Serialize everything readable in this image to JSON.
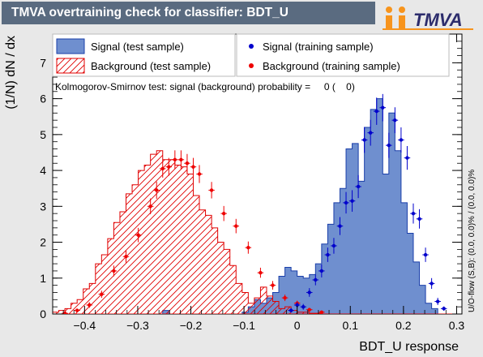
{
  "title": "TMVA overtraining check for classifier: BDT_U",
  "logo_text": "TMVA",
  "colors": {
    "signal_fill": "#6f8fcf",
    "signal_line": "#1a3faa",
    "background_line": "#e00000",
    "signal_point": "#0000cc",
    "background_point": "#ee0000",
    "title_bar": "#5a6b80",
    "logo_orange": "#f7941d"
  },
  "legend": {
    "signal_test": "Signal (test sample)",
    "background_test": "Background (test sample)",
    "signal_train": "Signal (training sample)",
    "background_train": "Background (training sample)"
  },
  "ks_text": "Kolmogorov-Smirnov test: signal (background) probability =     0 (    0)",
  "side_text": "U/O-flow (S,B): (0.0, 0.0)% / (0.0, 0.0)%",
  "chart_data": {
    "type": "histogram",
    "xlabel": "BDT_U response",
    "ylabel": "(1/N) dN / dx",
    "xlim": [
      -0.46,
      0.31
    ],
    "ylim": [
      0,
      7.8
    ],
    "x_ticks": [
      -0.4,
      -0.3,
      -0.2,
      -0.1,
      0,
      0.1,
      0.2,
      0.3
    ],
    "x_tick_labels": [
      "−0.4",
      "−0.3",
      "−0.2",
      "−0.1",
      "0",
      "0.1",
      "0.2",
      "0.3"
    ],
    "y_ticks": [
      0,
      1,
      2,
      3,
      4,
      5,
      6,
      7
    ],
    "bin_edges": [
      -0.46,
      -0.4485,
      -0.437,
      -0.4255,
      -0.414,
      -0.4025,
      -0.391,
      -0.3795,
      -0.368,
      -0.3565,
      -0.345,
      -0.3335,
      -0.322,
      -0.3105,
      -0.299,
      -0.2875,
      -0.276,
      -0.2645,
      -0.253,
      -0.2415,
      -0.23,
      -0.2185,
      -0.207,
      -0.1955,
      -0.184,
      -0.1725,
      -0.161,
      -0.1495,
      -0.138,
      -0.1265,
      -0.115,
      -0.1035,
      -0.092,
      -0.0805,
      -0.069,
      -0.0575,
      -0.046,
      -0.0345,
      -0.023,
      -0.0115,
      0.0,
      0.0115,
      0.023,
      0.0345,
      0.046,
      0.0575,
      0.069,
      0.0805,
      0.092,
      0.1035,
      0.115,
      0.1265,
      0.138,
      0.1495,
      0.161,
      0.1725,
      0.184,
      0.1955,
      0.207,
      0.2185,
      0.23,
      0.2415,
      0.253,
      0.2645,
      0.276,
      0.2875,
      0.299,
      0.31
    ],
    "series": [
      {
        "name": "Signal (test sample)",
        "style": "filled",
        "values": [
          0,
          0,
          0,
          0,
          0,
          0,
          0,
          0,
          0,
          0,
          0,
          0,
          0,
          0,
          0,
          0,
          0,
          0,
          0.1,
          0,
          0,
          0,
          0,
          0,
          0,
          0,
          0,
          0,
          0,
          0,
          0,
          0.05,
          0.2,
          0.4,
          0.3,
          0.45,
          0.6,
          1.05,
          1.3,
          1.2,
          1.05,
          1.0,
          1.1,
          1.4,
          1.95,
          2.5,
          3.1,
          3.5,
          4.6,
          4.75,
          3.7,
          5.2,
          5.7,
          6.0,
          3.9,
          5.6,
          4.55,
          3.1,
          2.25,
          1.45,
          0.8,
          0.3,
          0.15,
          0.0,
          0.0,
          0.0,
          0.0
        ]
      },
      {
        "name": "Background (test sample)",
        "style": "hatched",
        "values": [
          0.05,
          0.1,
          0.15,
          0.3,
          0.4,
          0.7,
          0.85,
          1.4,
          1.65,
          2.1,
          2.55,
          2.85,
          3.35,
          3.6,
          4.0,
          4.15,
          4.45,
          4.55,
          4.3,
          4.3,
          4.15,
          4.1,
          3.9,
          3.3,
          2.9,
          2.75,
          2.4,
          2.0,
          1.8,
          1.35,
          0.85,
          0.6,
          0.3,
          0.45,
          0.75,
          0.5,
          0.35,
          0.15,
          0.2,
          0.1,
          0.05,
          0.05,
          0.02,
          0.02,
          0.0,
          0.0,
          0.0,
          0.0,
          0.0,
          0.0,
          0.0,
          0.0,
          0.0,
          0.0,
          0.0,
          0.0,
          0.0,
          0.0,
          0.0,
          0.0,
          0.0,
          0.0,
          0.0,
          0.0,
          0.0,
          0.0,
          0.0
        ]
      },
      {
        "name": "Signal (training sample)",
        "style": "points",
        "points": [
          {
            "x": -0.0115,
            "y": 0.1,
            "err": 0.06
          },
          {
            "x": 0.0,
            "y": 0.25,
            "err": 0.08
          },
          {
            "x": 0.0115,
            "y": 0.2,
            "err": 0.08
          },
          {
            "x": 0.023,
            "y": 0.6,
            "err": 0.12
          },
          {
            "x": 0.0345,
            "y": 0.95,
            "err": 0.15
          },
          {
            "x": 0.046,
            "y": 1.2,
            "err": 0.18
          },
          {
            "x": 0.0575,
            "y": 1.65,
            "err": 0.2
          },
          {
            "x": 0.069,
            "y": 1.9,
            "err": 0.22
          },
          {
            "x": 0.0805,
            "y": 2.45,
            "err": 0.25
          },
          {
            "x": 0.092,
            "y": 3.1,
            "err": 0.3
          },
          {
            "x": 0.1035,
            "y": 3.15,
            "err": 0.3
          },
          {
            "x": 0.115,
            "y": 3.55,
            "err": 0.32
          },
          {
            "x": 0.1265,
            "y": 4.85,
            "err": 0.36
          },
          {
            "x": 0.138,
            "y": 5.05,
            "err": 0.36
          },
          {
            "x": 0.1495,
            "y": 5.65,
            "err": 0.38
          },
          {
            "x": 0.161,
            "y": 5.75,
            "err": 0.38
          },
          {
            "x": 0.1725,
            "y": 4.7,
            "err": 0.35
          },
          {
            "x": 0.184,
            "y": 5.4,
            "err": 0.36
          },
          {
            "x": 0.1955,
            "y": 4.85,
            "err": 0.35
          },
          {
            "x": 0.207,
            "y": 4.35,
            "err": 0.33
          },
          {
            "x": 0.2185,
            "y": 2.8,
            "err": 0.28
          },
          {
            "x": 0.23,
            "y": 2.65,
            "err": 0.27
          },
          {
            "x": 0.2415,
            "y": 1.65,
            "err": 0.2
          },
          {
            "x": 0.253,
            "y": 0.85,
            "err": 0.15
          },
          {
            "x": 0.2645,
            "y": 0.35,
            "err": 0.1
          },
          {
            "x": 0.276,
            "y": 0.15,
            "err": 0.06
          }
        ]
      },
      {
        "name": "Background (training sample)",
        "style": "points",
        "points": [
          {
            "x": -0.437,
            "y": 0.02,
            "err": 0.03
          },
          {
            "x": -0.414,
            "y": 0.1,
            "err": 0.05
          },
          {
            "x": -0.391,
            "y": 0.25,
            "err": 0.08
          },
          {
            "x": -0.368,
            "y": 0.55,
            "err": 0.1
          },
          {
            "x": -0.345,
            "y": 1.2,
            "err": 0.15
          },
          {
            "x": -0.322,
            "y": 1.6,
            "err": 0.17
          },
          {
            "x": -0.299,
            "y": 2.2,
            "err": 0.2
          },
          {
            "x": -0.276,
            "y": 3.0,
            "err": 0.22
          },
          {
            "x": -0.2645,
            "y": 3.45,
            "err": 0.24
          },
          {
            "x": -0.253,
            "y": 4.05,
            "err": 0.25
          },
          {
            "x": -0.2415,
            "y": 4.1,
            "err": 0.25
          },
          {
            "x": -0.23,
            "y": 4.3,
            "err": 0.26
          },
          {
            "x": -0.2185,
            "y": 4.3,
            "err": 0.26
          },
          {
            "x": -0.207,
            "y": 4.2,
            "err": 0.26
          },
          {
            "x": -0.1955,
            "y": 4.1,
            "err": 0.25
          },
          {
            "x": -0.184,
            "y": 3.9,
            "err": 0.25
          },
          {
            "x": -0.161,
            "y": 3.45,
            "err": 0.23
          },
          {
            "x": -0.138,
            "y": 2.8,
            "err": 0.21
          },
          {
            "x": -0.115,
            "y": 2.45,
            "err": 0.2
          },
          {
            "x": -0.092,
            "y": 1.85,
            "err": 0.17
          },
          {
            "x": -0.069,
            "y": 1.15,
            "err": 0.14
          },
          {
            "x": -0.046,
            "y": 0.8,
            "err": 0.12
          },
          {
            "x": -0.023,
            "y": 0.45,
            "err": 0.09
          },
          {
            "x": 0.0,
            "y": 0.3,
            "err": 0.07
          },
          {
            "x": 0.023,
            "y": 0.12,
            "err": 0.05
          },
          {
            "x": 0.046,
            "y": 0.05,
            "err": 0.03
          }
        ]
      }
    ]
  }
}
